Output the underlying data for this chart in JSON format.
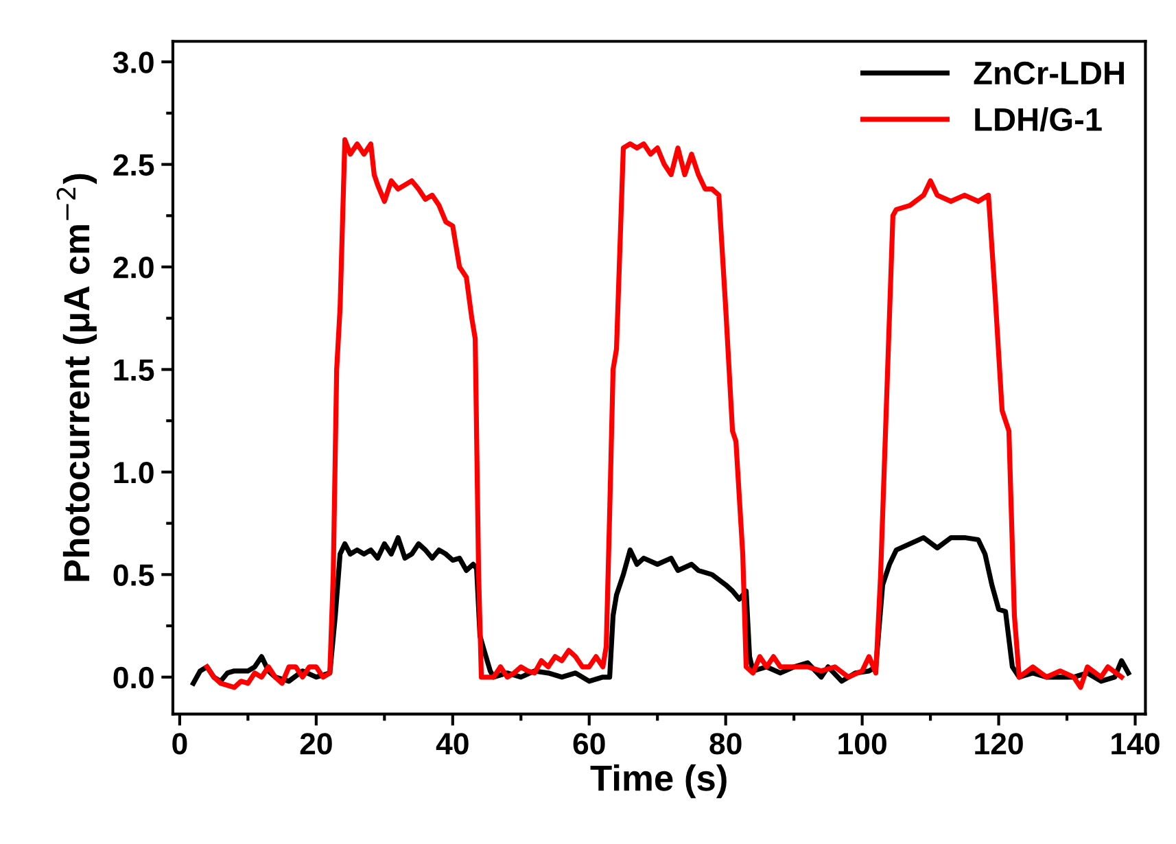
{
  "chart_data": {
    "type": "line",
    "xlabel": "Time (s)",
    "ylabel": "Photocurrent (μA cm$^{−2}$)",
    "xlim": [
      -1,
      141.5
    ],
    "ylim": [
      -0.18,
      3.1
    ],
    "xticks": [
      0,
      20,
      40,
      60,
      80,
      100,
      120,
      140
    ],
    "yticks": [
      {
        "value": 0,
        "label": "0.0"
      },
      {
        "value": 0.5,
        "label": "0.5"
      },
      {
        "value": 1,
        "label": "1.0"
      },
      {
        "value": 1.5,
        "label": "1.5"
      },
      {
        "value": 2,
        "label": "2.0"
      },
      {
        "value": 2.5,
        "label": "2.5"
      },
      {
        "value": 3,
        "label": "3.0"
      }
    ],
    "grid": false,
    "legend": "top right",
    "marker": "none",
    "line_style": "solid",
    "series": [
      {
        "name": "ZnCr-LDH",
        "color": "#000000",
        "x": [
          2,
          3,
          4,
          5,
          6,
          7,
          8,
          10,
          11,
          12,
          13,
          14,
          16,
          18,
          20,
          22,
          22.8,
          23.5,
          24.2,
          25,
          26,
          27,
          28,
          29,
          30,
          31,
          32,
          33,
          34,
          35,
          36,
          37,
          38,
          39,
          40,
          41,
          42,
          43,
          43.5,
          44,
          44.7,
          45.5,
          46,
          48,
          50,
          52,
          54,
          56,
          58,
          60,
          62,
          63,
          63.5,
          64,
          65,
          66,
          67,
          68,
          70,
          72,
          73,
          75,
          76,
          78,
          80,
          81,
          82,
          83,
          83.5,
          84,
          86,
          88,
          90,
          92,
          94,
          95,
          97,
          99,
          101,
          102,
          103,
          104,
          105,
          107,
          109,
          111,
          113,
          115,
          117,
          118,
          119,
          120,
          121,
          122,
          123,
          125,
          127,
          129,
          131,
          133,
          135,
          137,
          138,
          139
        ],
        "values": [
          -0.03,
          0.03,
          0.05,
          0.0,
          -0.02,
          0.02,
          0.03,
          0.03,
          0.05,
          0.1,
          0.03,
          0.0,
          -0.02,
          0.03,
          0.0,
          0.02,
          0.3,
          0.6,
          0.65,
          0.6,
          0.62,
          0.6,
          0.62,
          0.58,
          0.65,
          0.6,
          0.68,
          0.58,
          0.6,
          0.65,
          0.62,
          0.58,
          0.62,
          0.6,
          0.57,
          0.58,
          0.52,
          0.55,
          0.53,
          0.2,
          0.12,
          0.03,
          0.0,
          0.02,
          0.0,
          0.03,
          0.02,
          0.0,
          0.02,
          -0.02,
          0.0,
          0.0,
          0.3,
          0.4,
          0.5,
          0.62,
          0.55,
          0.58,
          0.55,
          0.58,
          0.52,
          0.55,
          0.52,
          0.5,
          0.45,
          0.42,
          0.38,
          0.42,
          0.1,
          0.03,
          0.05,
          0.02,
          0.05,
          0.07,
          0.0,
          0.05,
          -0.02,
          0.02,
          0.03,
          0.05,
          0.45,
          0.55,
          0.62,
          0.65,
          0.68,
          0.63,
          0.68,
          0.68,
          0.67,
          0.6,
          0.45,
          0.33,
          0.32,
          0.05,
          0.0,
          0.02,
          0.0,
          0.0,
          0.0,
          0.02,
          -0.02,
          0.0,
          0.08,
          0.02
        ]
      },
      {
        "name": "LDH/G-1",
        "color": "#ff0000",
        "x": [
          4,
          5,
          6,
          8,
          9,
          10,
          11,
          12,
          13,
          14,
          15,
          16,
          17,
          18,
          19,
          20,
          21,
          22,
          22.5,
          23,
          23.5,
          24.2,
          25,
          26,
          27,
          28,
          28.5,
          29,
          30,
          31,
          32,
          33,
          34,
          35,
          36,
          37,
          38,
          39,
          40,
          41,
          42,
          42.8,
          43.3,
          43.8,
          44.2,
          45,
          46,
          47,
          48,
          49,
          50,
          51,
          52,
          53,
          54,
          55,
          56,
          57,
          58,
          59,
          60,
          61,
          62,
          62.5,
          63,
          63.5,
          64,
          65,
          66,
          67,
          68,
          69,
          70,
          71,
          72,
          73,
          74,
          75,
          76,
          77,
          78,
          79,
          80,
          81,
          81.5,
          82.5,
          83,
          84,
          85,
          86,
          87,
          88,
          90,
          92,
          94,
          96,
          98,
          100,
          101,
          102,
          102.7,
          104.5,
          105,
          107,
          109,
          110,
          111,
          113,
          115,
          117,
          118.5,
          119.5,
          120.5,
          121.5,
          122.3,
          123,
          125,
          127,
          129,
          131,
          132,
          133,
          135,
          136,
          138
        ],
        "values": [
          0.05,
          0.0,
          -0.03,
          -0.05,
          -0.02,
          -0.03,
          0.02,
          0.0,
          0.05,
          0.0,
          -0.03,
          0.05,
          0.05,
          0.0,
          0.05,
          0.05,
          0.0,
          0.02,
          0.5,
          1.5,
          1.8,
          2.62,
          2.55,
          2.6,
          2.55,
          2.6,
          2.45,
          2.4,
          2.32,
          2.42,
          2.38,
          2.4,
          2.42,
          2.38,
          2.33,
          2.35,
          2.3,
          2.22,
          2.2,
          2.0,
          1.95,
          1.75,
          1.65,
          0.5,
          0.0,
          0.0,
          0.0,
          0.05,
          0.0,
          0.02,
          0.05,
          0.03,
          0.02,
          0.08,
          0.05,
          0.1,
          0.08,
          0.13,
          0.1,
          0.05,
          0.05,
          0.1,
          0.05,
          0.15,
          0.8,
          1.5,
          1.6,
          2.58,
          2.6,
          2.58,
          2.6,
          2.55,
          2.58,
          2.5,
          2.45,
          2.58,
          2.45,
          2.55,
          2.45,
          2.38,
          2.38,
          2.35,
          1.8,
          1.2,
          1.15,
          0.6,
          0.05,
          0.02,
          0.1,
          0.05,
          0.1,
          0.05,
          0.05,
          0.05,
          0.03,
          0.05,
          0.0,
          0.03,
          0.1,
          0.02,
          0.5,
          2.25,
          2.28,
          2.3,
          2.35,
          2.42,
          2.35,
          2.32,
          2.35,
          2.32,
          2.35,
          1.85,
          1.3,
          1.2,
          0.3,
          0.0,
          0.05,
          0.0,
          0.03,
          0.0,
          -0.05,
          0.05,
          0.0,
          0.05,
          0.0
        ]
      }
    ]
  }
}
